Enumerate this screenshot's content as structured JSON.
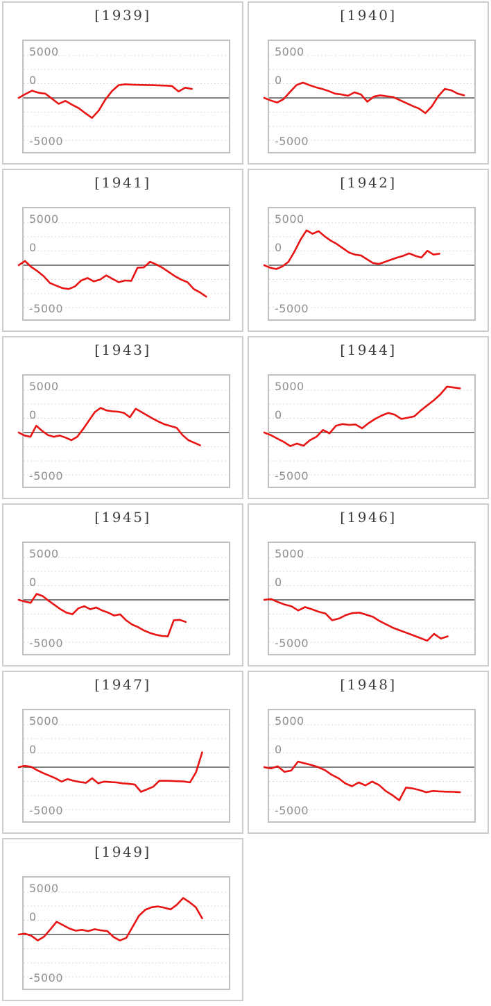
{
  "page": {
    "background": "#ffffff"
  },
  "style": {
    "card_border": "#cdcdcd",
    "plot_border": "#c1c1c1",
    "grid_color": "#d8d8d8",
    "zero_line_color": "#7f7f7f",
    "series_color": "#e81414",
    "title_color": "#3c3c3c",
    "tick_color": "#8f8f8f"
  },
  "chart_data": {
    "type": "line",
    "layout": "small multiples, 2 columns x 6 rows, last cell empty",
    "grid": "horizontal dashed gridlines, solid gray baseline at series start (0)",
    "legend": "none",
    "x_axis": "hidden",
    "y_tick_labels": [
      "5000",
      "0",
      "-5000"
    ],
    "y_ticks": [
      5000,
      0,
      -5000
    ],
    "ylim": [
      -6700,
      6700
    ],
    "panels": [
      {
        "title": "[1939]",
        "year": 1939,
        "end_fraction": 0.82,
        "values": [
          0,
          450,
          850,
          600,
          500,
          -100,
          -700,
          -350,
          -800,
          -1200,
          -1800,
          -2350,
          -1500,
          -200,
          800,
          1500,
          1600,
          1560,
          1540,
          1520,
          1500,
          1480,
          1450,
          1400,
          750,
          1200,
          1050
        ]
      },
      {
        "title": "[1940]",
        "year": 1940,
        "end_fraction": 0.95,
        "values": [
          0,
          -300,
          -550,
          -150,
          700,
          1500,
          1800,
          1500,
          1250,
          1050,
          800,
          500,
          400,
          250,
          650,
          400,
          -450,
          150,
          300,
          200,
          100,
          -250,
          -600,
          -950,
          -1250,
          -1800,
          -1000,
          200,
          1050,
          900,
          500,
          300
        ]
      },
      {
        "title": "[1941]",
        "year": 1941,
        "end_fraction": 0.89,
        "values": [
          0,
          500,
          -200,
          -700,
          -1300,
          -2100,
          -2400,
          -2700,
          -2800,
          -2500,
          -1800,
          -1500,
          -1900,
          -1700,
          -1200,
          -1600,
          -2000,
          -1800,
          -1850,
          -300,
          -250,
          400,
          100,
          -300,
          -800,
          -1300,
          -1700,
          -2000,
          -2800,
          -3200,
          -3700
        ]
      },
      {
        "title": "[1942]",
        "year": 1942,
        "end_fraction": 0.83,
        "values": [
          0,
          -300,
          -450,
          -150,
          400,
          1600,
          3000,
          4100,
          3700,
          4000,
          3400,
          2900,
          2500,
          2000,
          1500,
          1250,
          1150,
          700,
          250,
          150,
          400,
          650,
          900,
          1100,
          1400,
          1100,
          900,
          1700,
          1250,
          1350
        ]
      },
      {
        "title": "[1943]",
        "year": 1943,
        "end_fraction": 0.86,
        "values": [
          0,
          -350,
          -500,
          800,
          200,
          -300,
          -500,
          -350,
          -600,
          -900,
          -500,
          400,
          1400,
          2400,
          2900,
          2600,
          2500,
          2450,
          2300,
          1800,
          2800,
          2400,
          2000,
          1600,
          1250,
          950,
          750,
          550,
          -300,
          -900,
          -1200,
          -1500
        ]
      },
      {
        "title": "[1944]",
        "year": 1944,
        "end_fraction": 0.93,
        "values": [
          0,
          -300,
          -700,
          -1100,
          -1600,
          -1300,
          -1550,
          -900,
          -500,
          300,
          -100,
          800,
          1000,
          900,
          950,
          500,
          1100,
          1600,
          2000,
          2300,
          2100,
          1600,
          1750,
          1900,
          2600,
          3200,
          3800,
          4500,
          5400,
          5300,
          5200
        ]
      },
      {
        "title": "[1945]",
        "year": 1945,
        "end_fraction": 0.79,
        "values": [
          0,
          -200,
          -350,
          700,
          450,
          -100,
          -600,
          -1100,
          -1500,
          -1700,
          -1000,
          -750,
          -1100,
          -900,
          -1250,
          -1500,
          -1850,
          -1700,
          -2400,
          -2900,
          -3200,
          -3600,
          -3900,
          -4100,
          -4250,
          -4300,
          -2400,
          -2350,
          -2600
        ]
      },
      {
        "title": "[1946]",
        "year": 1946,
        "end_fraction": 0.87,
        "values": [
          0,
          100,
          -250,
          -550,
          -750,
          -1250,
          -850,
          -1100,
          -1400,
          -1600,
          -2400,
          -2200,
          -1800,
          -1550,
          -1500,
          -1750,
          -2000,
          -2500,
          -2900,
          -3300,
          -3600,
          -3900,
          -4200,
          -4500,
          -4800,
          -4000,
          -4550,
          -4300
        ]
      },
      {
        "title": "[1947]",
        "year": 1947,
        "end_fraction": 0.87,
        "values": [
          0,
          150,
          50,
          -350,
          -700,
          -1000,
          -1300,
          -1700,
          -1400,
          -1600,
          -1750,
          -1850,
          -1300,
          -1900,
          -1700,
          -1750,
          -1800,
          -1900,
          -1950,
          -2050,
          -2900,
          -2600,
          -2300,
          -1600,
          -1600,
          -1620,
          -1650,
          -1680,
          -1800,
          -600,
          1750
        ]
      },
      {
        "title": "[1948]",
        "year": 1948,
        "end_fraction": 0.93,
        "values": [
          0,
          -150,
          100,
          -550,
          -400,
          650,
          450,
          250,
          0,
          -350,
          -900,
          -1300,
          -1900,
          -2250,
          -1800,
          -2150,
          -1700,
          -2100,
          -2800,
          -3300,
          -3900,
          -2400,
          -2500,
          -2700,
          -2950,
          -2800,
          -2850,
          -2880,
          -2900,
          -2950
        ]
      },
      {
        "title": "[1949]",
        "year": 1949,
        "end_fraction": 0.87,
        "values": [
          0,
          100,
          -150,
          -700,
          -250,
          600,
          1500,
          1100,
          700,
          450,
          550,
          400,
          620,
          480,
          400,
          -300,
          -700,
          -400,
          900,
          2200,
          2900,
          3200,
          3300,
          3150,
          2950,
          3500,
          4300,
          3800,
          3200,
          1900
        ]
      }
    ]
  }
}
